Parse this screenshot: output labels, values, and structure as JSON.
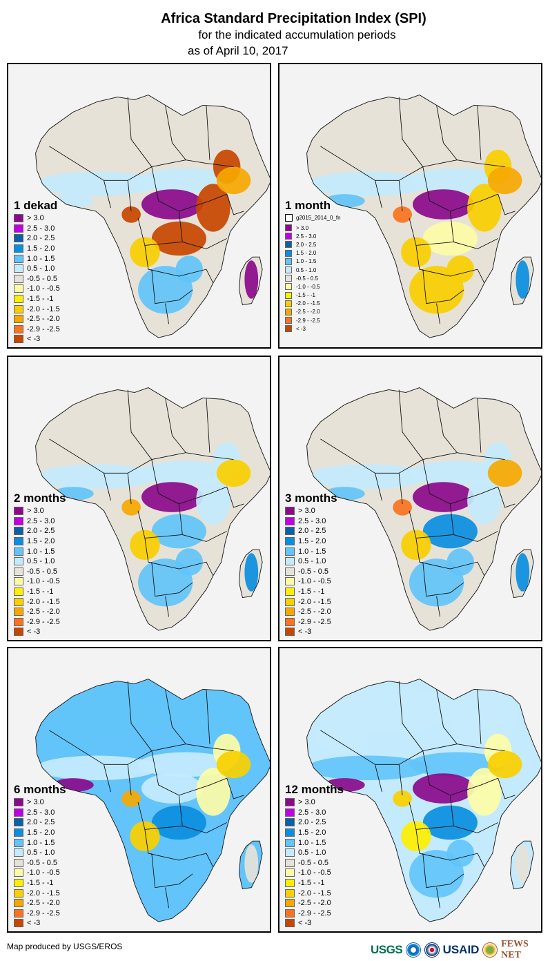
{
  "header": {
    "title": "Africa Standard Precipitation Index (SPI)",
    "subtitle": "for the indicated accumulation periods",
    "date": "as of April 10, 2017"
  },
  "legend_classes": [
    {
      "label": "> 3.0",
      "color": "#8b0a8c"
    },
    {
      "label": "2.5 - 3.0",
      "color": "#c000e0"
    },
    {
      "label": "2.0 - 2.5",
      "color": "#0a5fa8"
    },
    {
      "label": "1.5 - 2.0",
      "color": "#0a8ee0"
    },
    {
      "label": "1.0 - 1.5",
      "color": "#62c4fa"
    },
    {
      "label": "0.5 - 1.0",
      "color": "#c4eafd"
    },
    {
      "label": "-0.5 - 0.5",
      "color": "#e6e2d8"
    },
    {
      "label": "-1.0 - -0.5",
      "color": "#fdfca6"
    },
    {
      "label": "-1.5 - -1",
      "color": "#fdef00"
    },
    {
      "label": "-2.0 - -1.5",
      "color": "#f9cf00"
    },
    {
      "label": "-2.5 - -2.0",
      "color": "#f6a800"
    },
    {
      "label": "-2.9 - -2.5",
      "color": "#f97320"
    },
    {
      "label": "< -3",
      "color": "#c84600"
    }
  ],
  "panels": [
    {
      "id": "1-dekad",
      "title": "1 dekad",
      "extra_legend": null,
      "dominant": {
        "north": "#e6e2d8",
        "sahel": "#c4eafd",
        "central": "#8b0a8c",
        "east": "#c84600",
        "south_central": "#c84600",
        "southern": "#62c4fa",
        "madagascar": "#8b0a8c",
        "horn": "#f6a800",
        "west_coast": "#c4eafd",
        "gabon": "#c84600",
        "angola": "#f9cf00"
      }
    },
    {
      "id": "1-month",
      "title": "1 month",
      "extra_legend": "g2015_2014_0_fn",
      "dominant": {
        "north": "#e6e2d8",
        "sahel": "#c4eafd",
        "central": "#8b0a8c",
        "east": "#f9cf00",
        "south_central": "#fdfca6",
        "southern": "#f9cf00",
        "madagascar": "#0a8ee0",
        "horn": "#f6a800",
        "west_coast": "#62c4fa",
        "gabon": "#f97320",
        "angola": "#f9cf00"
      }
    },
    {
      "id": "2-months",
      "title": "2 months",
      "extra_legend": null,
      "dominant": {
        "north": "#e6e2d8",
        "sahel": "#c4eafd",
        "central": "#8b0a8c",
        "east": "#c4eafd",
        "south_central": "#62c4fa",
        "southern": "#62c4fa",
        "madagascar": "#0a8ee0",
        "horn": "#f9cf00",
        "west_coast": "#62c4fa",
        "gabon": "#f6a800",
        "angola": "#f9cf00"
      }
    },
    {
      "id": "3-months",
      "title": "3 months",
      "extra_legend": null,
      "dominant": {
        "north": "#e6e2d8",
        "sahel": "#c4eafd",
        "central": "#8b0a8c",
        "east": "#c4eafd",
        "south_central": "#0a8ee0",
        "southern": "#62c4fa",
        "madagascar": "#0a8ee0",
        "horn": "#f6a800",
        "west_coast": "#62c4fa",
        "gabon": "#f97320",
        "angola": "#f9cf00"
      }
    },
    {
      "id": "6-months",
      "title": "6 months",
      "extra_legend": null,
      "dominant": {
        "north": "#62c4fa",
        "sahel": "#c4eafd",
        "central": "#c4eafd",
        "east": "#fdfca6",
        "south_central": "#0a8ee0",
        "southern": "#62c4fa",
        "madagascar": "#e6e2d8",
        "horn": "#f9cf00",
        "west_coast": "#8b0a8c",
        "gabon": "#f6a800",
        "angola": "#f9cf00"
      }
    },
    {
      "id": "12-months",
      "title": "12 months",
      "extra_legend": null,
      "dominant": {
        "north": "#c4eafd",
        "sahel": "#62c4fa",
        "central": "#8b0a8c",
        "east": "#fdfca6",
        "south_central": "#0a8ee0",
        "southern": "#62c4fa",
        "madagascar": "#e6e2d8",
        "horn": "#f9cf00",
        "west_coast": "#8b0a8c",
        "gabon": "#f9cf00",
        "angola": "#fdef00"
      }
    }
  ],
  "footer": {
    "credit": "Map produced by USGS/EROS",
    "logos": [
      "USGS",
      "NOAA",
      "USAID",
      "FEWS NET"
    ]
  }
}
